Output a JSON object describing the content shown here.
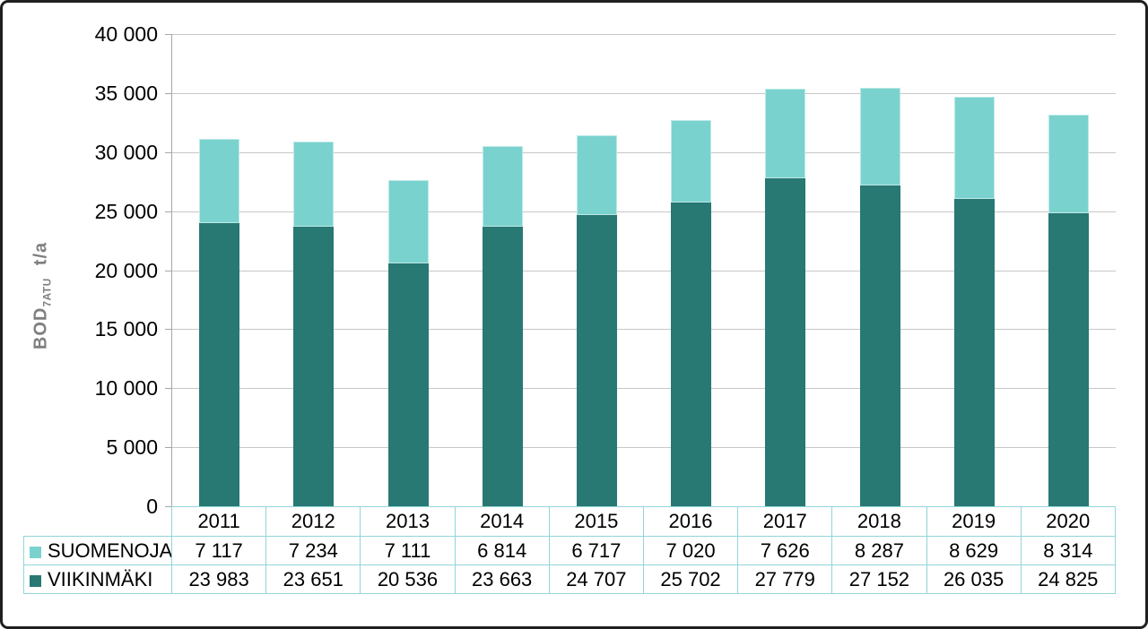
{
  "chart_data": {
    "type": "bar",
    "stacked": true,
    "title": "",
    "ylabel": {
      "main": "BOD",
      "sub": "7ATU",
      "unit": "t/a"
    },
    "xlabel": "",
    "ylim": [
      0,
      40000
    ],
    "ytick_interval": 5000,
    "ytick_labels": [
      "40 000",
      "35 000",
      "30 000",
      "25 000",
      "20 000",
      "15 000",
      "10 000",
      "5 000",
      "0"
    ],
    "grid": true,
    "legend_position": "table-left",
    "categories": [
      "2011",
      "2012",
      "2013",
      "2014",
      "2015",
      "2016",
      "2017",
      "2018",
      "2019",
      "2020"
    ],
    "series": [
      {
        "name": "SUOMENOJA",
        "color": "#7ad2ce",
        "values": [
          7117,
          7234,
          7111,
          6814,
          6717,
          7020,
          7626,
          8287,
          8629,
          8314
        ],
        "labels": [
          "7 117",
          "7 234",
          "7 111",
          "6 814",
          "6 717",
          "7 020",
          "7 626",
          "8 287",
          "8 629",
          "8 314"
        ]
      },
      {
        "name": "VIIKINMÄKI",
        "color": "#287873",
        "values": [
          23983,
          23651,
          20536,
          23663,
          24707,
          25702,
          27779,
          27152,
          26035,
          24825
        ],
        "labels": [
          "23 983",
          "23 651",
          "20 536",
          "23 663",
          "24 707",
          "25 702",
          "27 779",
          "27 152",
          "26 035",
          "24 825"
        ]
      }
    ]
  },
  "colors": {
    "suomenoja": "#7ad2ce",
    "viikinmaki": "#287873",
    "table_border": "#92d5d8",
    "gridline": "#c7c7c7",
    "axis_line": "#a6a6a6",
    "ylabel_text": "#7f7f7f",
    "text": "#000000",
    "frame": "#1f1f1f"
  }
}
